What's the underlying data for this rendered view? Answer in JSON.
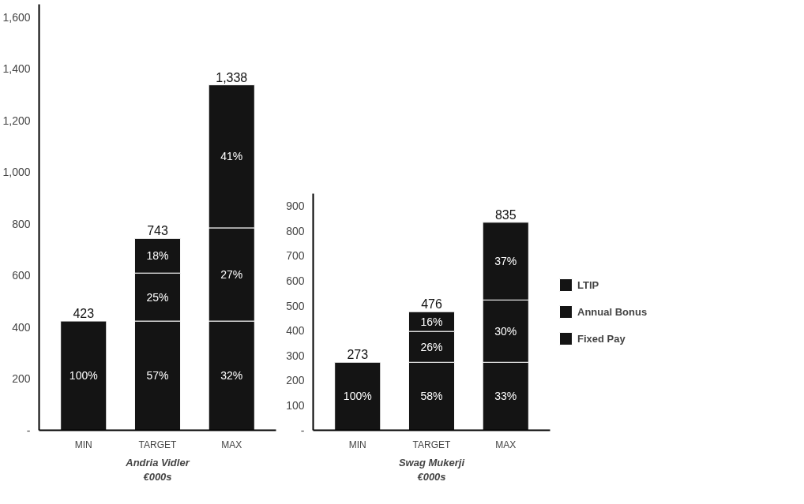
{
  "chart_data": [
    {
      "type": "bar",
      "stacked": true,
      "xlabel": "Andria Vidler\n€000s",
      "categories": [
        "MIN",
        "TARGET",
        "MAX"
      ],
      "series": [
        {
          "color": "#141414",
          "values": [
            423,
            423,
            423
          ]
        },
        {
          "color": "#141414",
          "values": [
            null,
            186,
            361
          ]
        },
        {
          "color": "#141414",
          "values": [
            null,
            134,
            554
          ]
        }
      ],
      "annotations": [
        "100%",
        "57%",
        "32%",
        "25%",
        "27%",
        "18%",
        "41%"
      ],
      "totals": [
        "423",
        "743",
        "1,338"
      ],
      "ylim": [
        0,
        1650
      ],
      "yticks": [
        {
          "value": 0,
          "label": "-"
        },
        200,
        400,
        600,
        800,
        {
          "value": 1000,
          "label": "1,000"
        },
        {
          "value": 1200,
          "label": "1,200"
        },
        {
          "value": 1400,
          "label": "1,400"
        },
        {
          "value": 1600,
          "label": "1,600"
        }
      ],
      "grid": false
    },
    {
      "type": "bar",
      "stacked": true,
      "xlabel": "Swag Mukerji\n€000s",
      "categories": [
        "MIN",
        "TARGET",
        "MAX"
      ],
      "series": [
        {
          "name": "Fixed Pay",
          "color": "#141414",
          "values": [
            273,
            273,
            273
          ]
        },
        {
          "name": "Annual Bonus",
          "color": "#141414",
          "values": [
            null,
            124,
            250
          ]
        },
        {
          "name": "LTIP",
          "color": "#141414",
          "values": [
            null,
            79,
            312
          ]
        }
      ],
      "annotations": [
        "100%",
        "58%",
        "33%",
        "26%",
        "30%",
        "16%",
        "37%"
      ],
      "totals": [
        "273",
        "476",
        "835"
      ],
      "ylim": [
        0,
        950
      ],
      "yticks": [
        {
          "value": 0,
          "label": "-"
        },
        100,
        200,
        300,
        400,
        500,
        600,
        700,
        800,
        900
      ],
      "grid": false,
      "legend": "right"
    }
  ]
}
